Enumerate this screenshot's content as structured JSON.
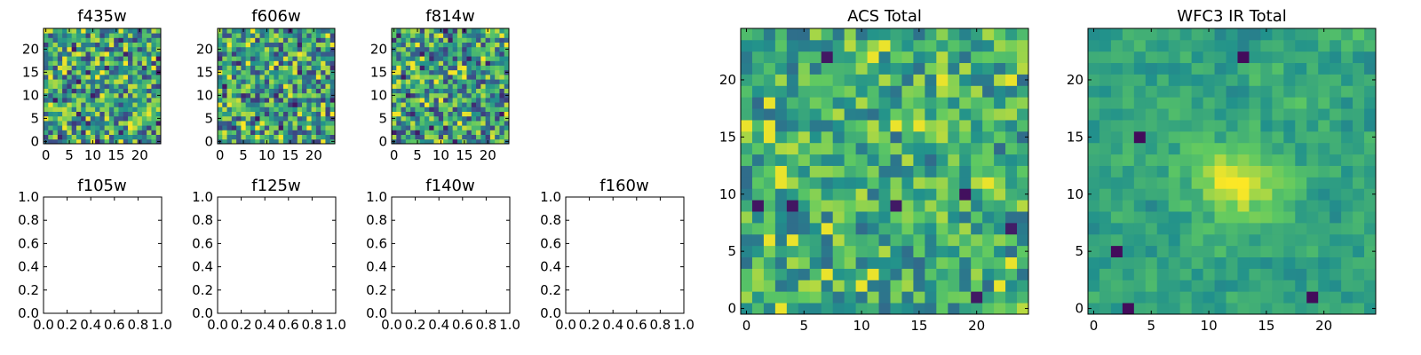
{
  "figure": {
    "background": "#ffffff",
    "colormap": [
      "#440154",
      "#3b528b",
      "#21918c",
      "#5ec962",
      "#fde725"
    ]
  },
  "chart_data": [
    {
      "type": "heatmap",
      "title": "f435w",
      "xticks": [
        "0",
        "5",
        "10",
        "15",
        "20"
      ],
      "yticks": [
        "0",
        "5",
        "10",
        "15",
        "20"
      ],
      "xlim": [
        -0.5,
        24.5
      ],
      "ylim": [
        -0.5,
        24.5
      ],
      "grid_size": 25,
      "seed": 11,
      "noise": "high"
    },
    {
      "type": "heatmap",
      "title": "f606w",
      "xticks": [
        "0",
        "5",
        "10",
        "15",
        "20"
      ],
      "yticks": [
        "0",
        "5",
        "10",
        "15",
        "20"
      ],
      "xlim": [
        -0.5,
        24.5
      ],
      "ylim": [
        -0.5,
        24.5
      ],
      "grid_size": 25,
      "seed": 23,
      "noise": "high"
    },
    {
      "type": "heatmap",
      "title": "f814w",
      "xticks": [
        "0",
        "5",
        "10",
        "15",
        "20"
      ],
      "yticks": [
        "0",
        "5",
        "10",
        "15",
        "20"
      ],
      "xlim": [
        -0.5,
        24.5
      ],
      "ylim": [
        -0.5,
        24.5
      ],
      "grid_size": 25,
      "seed": 37,
      "noise": "high"
    },
    {
      "type": "line",
      "title": "f105w",
      "xticks": [
        "0.0",
        "0.2",
        "0.4",
        "0.6",
        "0.8",
        "1.0"
      ],
      "yticks": [
        "0.0",
        "0.2",
        "0.4",
        "0.6",
        "0.8",
        "1.0"
      ],
      "xlim": [
        0,
        1
      ],
      "ylim": [
        0,
        1
      ],
      "series": []
    },
    {
      "type": "line",
      "title": "f125w",
      "xticks": [
        "0.0",
        "0.2",
        "0.4",
        "0.6",
        "0.8",
        "1.0"
      ],
      "yticks": [
        "0.0",
        "0.2",
        "0.4",
        "0.6",
        "0.8",
        "1.0"
      ],
      "xlim": [
        0,
        1
      ],
      "ylim": [
        0,
        1
      ],
      "series": []
    },
    {
      "type": "line",
      "title": "f140w",
      "xticks": [
        "0.0",
        "0.2",
        "0.4",
        "0.6",
        "0.8",
        "1.0"
      ],
      "yticks": [
        "0.0",
        "0.2",
        "0.4",
        "0.6",
        "0.8",
        "1.0"
      ],
      "xlim": [
        0,
        1
      ],
      "ylim": [
        0,
        1
      ],
      "series": []
    },
    {
      "type": "line",
      "title": "f160w",
      "xticks": [
        "0.0",
        "0.2",
        "0.4",
        "0.6",
        "0.8",
        "1.0"
      ],
      "yticks": [
        "0.0",
        "0.2",
        "0.4",
        "0.6",
        "0.8",
        "1.0"
      ],
      "xlim": [
        0,
        1
      ],
      "ylim": [
        0,
        1
      ],
      "series": []
    },
    {
      "type": "heatmap",
      "title": "ACS Total",
      "xticks": [
        "0",
        "5",
        "10",
        "15",
        "20"
      ],
      "yticks": [
        "0",
        "5",
        "10",
        "15",
        "20"
      ],
      "xlim": [
        -0.5,
        24.5
      ],
      "ylim": [
        -0.5,
        24.5
      ],
      "grid_size": 25,
      "seed": 53,
      "noise": "medium"
    },
    {
      "type": "heatmap",
      "title": "WFC3 IR Total",
      "xticks": [
        "0",
        "5",
        "10",
        "15",
        "20"
      ],
      "yticks": [
        "0",
        "5",
        "10",
        "15",
        "20"
      ],
      "xlim": [
        -0.5,
        24.5
      ],
      "ylim": [
        -0.5,
        24.5
      ],
      "grid_size": 25,
      "seed": 71,
      "noise": "smooth",
      "hotspot": [
        13,
        11
      ],
      "cold_spots": [
        [
          13,
          22
        ],
        [
          19,
          1
        ],
        [
          3,
          0
        ],
        [
          2,
          5
        ],
        [
          4,
          15
        ]
      ]
    }
  ]
}
